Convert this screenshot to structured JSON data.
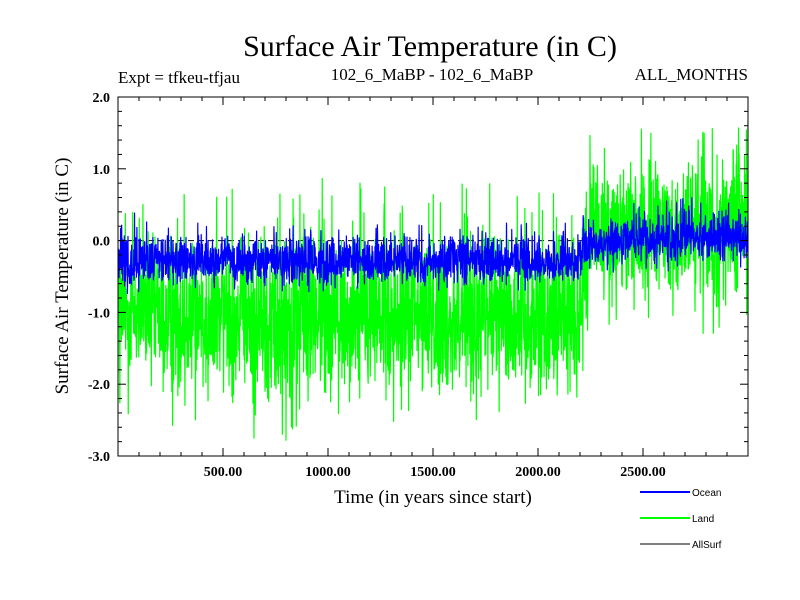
{
  "chart_data": {
    "type": "line",
    "title": "Surface Air Temperature (in C)",
    "header_left": "Expt = tfkeu-tfjau",
    "header_center": "102_6_MaBP - 102_6_MaBP",
    "header_right": "ALL_MONTHS",
    "xlabel": "Time (in years since start)",
    "ylabel": "Surface Air Temperature (in C)",
    "xlim": [
      0,
      3000
    ],
    "ylim": [
      -3.0,
      2.0
    ],
    "x_ticks": [
      500,
      1000,
      1500,
      2000,
      2500
    ],
    "x_tick_labels": [
      "500.00",
      "1000.00",
      "1500.00",
      "2000.00",
      "2500.00"
    ],
    "y_ticks": [
      -3.0,
      -2.0,
      -1.0,
      0.0,
      1.0,
      2.0
    ],
    "y_tick_labels": [
      "-3.0",
      "-2.0",
      "-1.0",
      "0.0",
      "1.0",
      "2.0"
    ],
    "grid": false,
    "legend_position": "bottom-right, below plot",
    "shift_year": 2180,
    "series": [
      {
        "name": "Ocean",
        "color": "#0000ff",
        "x": [
          0,
          250,
          500,
          750,
          1000,
          1250,
          1500,
          1750,
          2000,
          2180,
          2250,
          2500,
          2750,
          3000
        ],
        "mean": [
          -0.35,
          -0.3,
          -0.3,
          -0.3,
          -0.3,
          -0.3,
          -0.3,
          -0.3,
          -0.3,
          -0.3,
          -0.05,
          0.0,
          0.05,
          0.05
        ],
        "min": [
          -0.75,
          -0.7,
          -0.7,
          -0.75,
          -0.7,
          -0.7,
          -0.7,
          -0.7,
          -0.7,
          -0.7,
          -0.5,
          -0.45,
          -0.4,
          -0.4
        ],
        "max": [
          0.45,
          0.25,
          0.25,
          0.25,
          0.25,
          0.25,
          0.25,
          0.25,
          0.25,
          0.3,
          0.45,
          0.55,
          0.6,
          0.6
        ]
      },
      {
        "name": "Land",
        "color": "#00ff00",
        "x": [
          0,
          250,
          500,
          750,
          1000,
          1250,
          1500,
          1750,
          2000,
          2180,
          2250,
          2500,
          2750,
          3000
        ],
        "mean": [
          -1.0,
          -1.1,
          -1.1,
          -1.1,
          -1.1,
          -1.1,
          -1.1,
          -1.1,
          -1.1,
          -1.05,
          0.05,
          0.1,
          0.15,
          0.15
        ],
        "min": [
          -2.4,
          -2.6,
          -2.5,
          -3.0,
          -2.5,
          -2.5,
          -2.6,
          -2.5,
          -2.6,
          -2.4,
          -1.2,
          -1.3,
          -1.3,
          -1.3
        ],
        "max": [
          0.6,
          0.7,
          0.7,
          0.8,
          0.9,
          0.8,
          0.8,
          0.8,
          0.9,
          0.8,
          1.6,
          1.6,
          1.5,
          1.75
        ]
      },
      {
        "name": "AllSurf",
        "color": "#000000",
        "x": [
          0,
          3000
        ],
        "mean": [
          0.0,
          0.0
        ],
        "min": [
          0.0,
          0.0
        ],
        "max": [
          0.0,
          0.0
        ]
      }
    ]
  }
}
